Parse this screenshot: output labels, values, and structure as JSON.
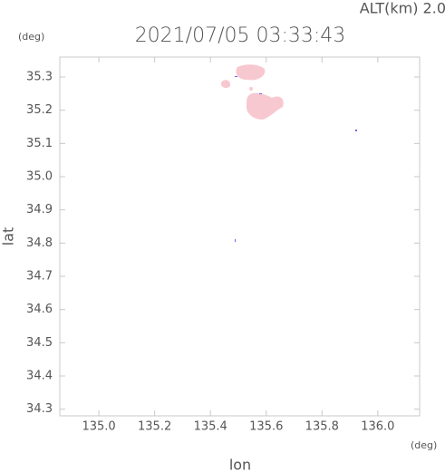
{
  "chart_data": {
    "type": "radar",
    "title": "2021/07/05 03:33:43",
    "subtitle": "ALT(km) 2.0",
    "x_label": "lon",
    "y_label": "lat",
    "x_unit": "(deg)",
    "y_unit": "(deg)",
    "xlim": [
      134.86,
      136.15
    ],
    "ylim": [
      34.28,
      35.36
    ],
    "xticks": [
      {
        "value": 135,
        "label": "135.0"
      },
      135.2,
      135.4,
      135.6,
      135.8,
      {
        "value": 136,
        "label": "136.0"
      }
    ],
    "yticks": [
      34.3,
      34.4,
      34.5,
      34.6,
      34.7,
      34.8,
      34.9,
      {
        "value": 35,
        "label": "35.0"
      },
      35.1,
      35.2,
      35.3
    ],
    "frame_color": "#c8c8c8"
  }
}
